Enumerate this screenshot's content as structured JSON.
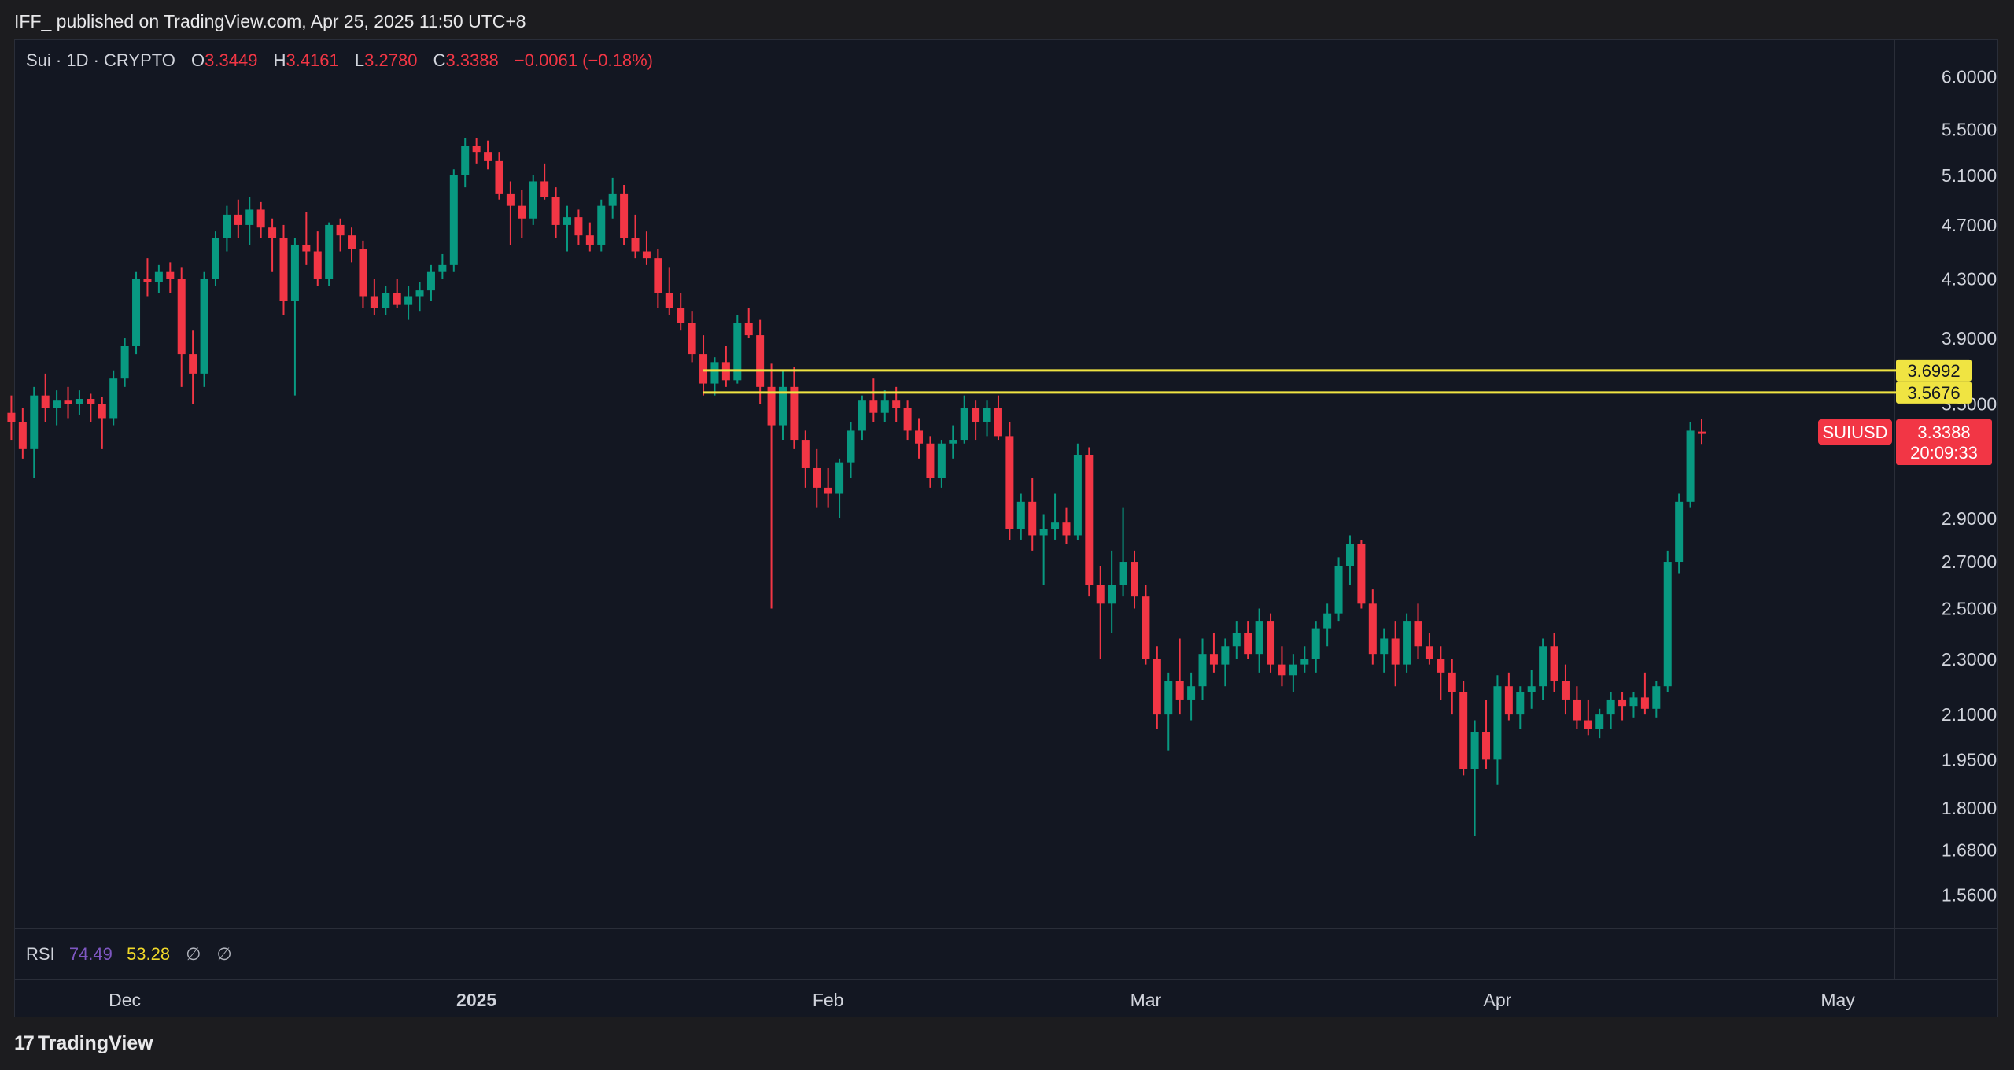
{
  "header": {
    "published": "IFF_ published on TradingView.com, Apr 25, 2025 11:50 UTC+8"
  },
  "legend": {
    "symbol": "Sui · 1D · CRYPTO",
    "o_label": "O",
    "o": "3.3449",
    "h_label": "H",
    "h": "3.4161",
    "l_label": "L",
    "l": "3.2780",
    "c_label": "C",
    "c": "3.3388",
    "change": "−0.0061 (−0.18%)"
  },
  "rsi": {
    "name": "RSI",
    "value1": "74.49",
    "value2": "53.28",
    "na1": "∅",
    "na2": "∅"
  },
  "footer": {
    "logo_mark": "17",
    "logo_text": "TradingView"
  },
  "colors": {
    "up": "#089981",
    "down": "#f23645",
    "level_line": "#f0e442",
    "background": "#131722",
    "text": "#d1d4dc"
  },
  "chart_data": {
    "type": "candlestick",
    "symbol": "SUIUSD",
    "interval": "1D",
    "y_scale": "log",
    "ylim": [
      1.5,
      6.2
    ],
    "price_ticks": [
      "6.0000",
      "5.5000",
      "5.1000",
      "4.7000",
      "4.3000",
      "3.9000",
      "3.5000",
      "2.9000",
      "2.7000",
      "2.5000",
      "2.3000",
      "2.1000",
      "1.9500",
      "1.8000",
      "1.6800",
      "1.5600"
    ],
    "x_ticks": [
      {
        "label": "Dec",
        "date": "2024-12-01"
      },
      {
        "label": "2025",
        "date": "2025-01-01",
        "bold": true
      },
      {
        "label": "Feb",
        "date": "2025-02-01"
      },
      {
        "label": "Mar",
        "date": "2025-03-01"
      },
      {
        "label": "Apr",
        "date": "2025-04-01"
      },
      {
        "label": "May",
        "date": "2025-05-01"
      }
    ],
    "horizontal_levels": [
      {
        "price": 3.6992,
        "label": "3.6992",
        "from_date": "2025-01-21"
      },
      {
        "price": 3.5676,
        "label": "3.5676",
        "from_date": "2025-01-21"
      }
    ],
    "last_price": {
      "symbol": "SUIUSD",
      "value": "3.3388",
      "countdown": "20:09:33"
    },
    "start_date": "2024-11-20",
    "candles": [
      [
        3.62,
        3.7,
        3.35,
        3.45
      ],
      [
        3.45,
        3.55,
        3.3,
        3.4
      ],
      [
        3.4,
        3.48,
        3.2,
        3.25
      ],
      [
        3.25,
        3.6,
        3.1,
        3.55
      ],
      [
        3.55,
        3.68,
        3.4,
        3.48
      ],
      [
        3.48,
        3.58,
        3.38,
        3.52
      ],
      [
        3.52,
        3.6,
        3.42,
        3.5
      ],
      [
        3.5,
        3.58,
        3.44,
        3.53
      ],
      [
        3.53,
        3.56,
        3.4,
        3.5
      ],
      [
        3.5,
        3.54,
        3.25,
        3.42
      ],
      [
        3.42,
        3.7,
        3.38,
        3.65
      ],
      [
        3.65,
        3.9,
        3.6,
        3.85
      ],
      [
        3.85,
        4.35,
        3.8,
        4.3
      ],
      [
        4.3,
        4.45,
        4.18,
        4.28
      ],
      [
        4.28,
        4.4,
        4.2,
        4.35
      ],
      [
        4.35,
        4.42,
        4.2,
        4.3
      ],
      [
        4.3,
        4.38,
        3.6,
        3.8
      ],
      [
        3.8,
        3.95,
        3.5,
        3.68
      ],
      [
        3.68,
        4.35,
        3.6,
        4.3
      ],
      [
        4.3,
        4.65,
        4.25,
        4.6
      ],
      [
        4.6,
        4.85,
        4.5,
        4.78
      ],
      [
        4.78,
        4.9,
        4.6,
        4.7
      ],
      [
        4.7,
        4.92,
        4.55,
        4.82
      ],
      [
        4.82,
        4.88,
        4.6,
        4.68
      ],
      [
        4.68,
        4.75,
        4.35,
        4.6
      ],
      [
        4.6,
        4.7,
        4.05,
        4.15
      ],
      [
        4.15,
        4.6,
        3.55,
        4.55
      ],
      [
        4.55,
        4.8,
        4.4,
        4.5
      ],
      [
        4.5,
        4.65,
        4.25,
        4.3
      ],
      [
        4.3,
        4.72,
        4.25,
        4.7
      ],
      [
        4.7,
        4.75,
        4.5,
        4.62
      ],
      [
        4.62,
        4.68,
        4.42,
        4.52
      ],
      [
        4.52,
        4.58,
        4.1,
        4.18
      ],
      [
        4.18,
        4.3,
        4.05,
        4.1
      ],
      [
        4.1,
        4.25,
        4.05,
        4.2
      ],
      [
        4.2,
        4.3,
        4.1,
        4.12
      ],
      [
        4.12,
        4.25,
        4.02,
        4.18
      ],
      [
        4.18,
        4.28,
        4.08,
        4.22
      ],
      [
        4.22,
        4.4,
        4.15,
        4.35
      ],
      [
        4.35,
        4.48,
        4.3,
        4.4
      ],
      [
        4.4,
        5.15,
        4.35,
        5.1
      ],
      [
        5.1,
        5.42,
        5.0,
        5.35
      ],
      [
        5.35,
        5.42,
        5.2,
        5.3
      ],
      [
        5.3,
        5.4,
        5.15,
        5.22
      ],
      [
        5.22,
        5.3,
        4.9,
        4.95
      ],
      [
        4.95,
        5.05,
        4.55,
        4.85
      ],
      [
        4.85,
        4.98,
        4.6,
        4.75
      ],
      [
        4.75,
        5.1,
        4.7,
        5.05
      ],
      [
        5.05,
        5.2,
        4.9,
        4.92
      ],
      [
        4.92,
        5.0,
        4.6,
        4.7
      ],
      [
        4.7,
        4.85,
        4.5,
        4.76
      ],
      [
        4.76,
        4.82,
        4.55,
        4.62
      ],
      [
        4.62,
        4.72,
        4.5,
        4.55
      ],
      [
        4.55,
        4.9,
        4.5,
        4.85
      ],
      [
        4.85,
        5.08,
        4.75,
        4.95
      ],
      [
        4.95,
        5.02,
        4.55,
        4.6
      ],
      [
        4.6,
        4.78,
        4.45,
        4.5
      ],
      [
        4.5,
        4.65,
        4.4,
        4.45
      ],
      [
        4.45,
        4.52,
        4.1,
        4.2
      ],
      [
        4.2,
        4.38,
        4.05,
        4.1
      ],
      [
        4.1,
        4.2,
        3.95,
        4.0
      ],
      [
        4.0,
        4.08,
        3.75,
        3.8
      ],
      [
        3.8,
        3.92,
        3.55,
        3.62
      ],
      [
        3.62,
        3.78,
        3.55,
        3.75
      ],
      [
        3.75,
        3.85,
        3.6,
        3.64
      ],
      [
        3.64,
        4.05,
        3.62,
        4.0
      ],
      [
        4.0,
        4.1,
        3.9,
        3.92
      ],
      [
        3.92,
        4.02,
        3.5,
        3.6
      ],
      [
        3.6,
        3.74,
        2.5,
        3.38
      ],
      [
        3.38,
        3.7,
        3.3,
        3.6
      ],
      [
        3.6,
        3.72,
        3.25,
        3.3
      ],
      [
        3.3,
        3.35,
        3.05,
        3.15
      ],
      [
        3.15,
        3.25,
        2.95,
        3.05
      ],
      [
        3.05,
        3.15,
        2.95,
        3.02
      ],
      [
        3.02,
        3.2,
        2.9,
        3.18
      ],
      [
        3.18,
        3.4,
        3.1,
        3.35
      ],
      [
        3.35,
        3.55,
        3.3,
        3.52
      ],
      [
        3.52,
        3.65,
        3.4,
        3.45
      ],
      [
        3.45,
        3.58,
        3.4,
        3.52
      ],
      [
        3.52,
        3.6,
        3.4,
        3.48
      ],
      [
        3.48,
        3.52,
        3.3,
        3.35
      ],
      [
        3.35,
        3.42,
        3.2,
        3.28
      ],
      [
        3.28,
        3.32,
        3.05,
        3.1
      ],
      [
        3.1,
        3.3,
        3.05,
        3.28
      ],
      [
        3.28,
        3.38,
        3.2,
        3.3
      ],
      [
        3.3,
        3.55,
        3.28,
        3.48
      ],
      [
        3.48,
        3.52,
        3.3,
        3.4
      ],
      [
        3.4,
        3.52,
        3.32,
        3.48
      ],
      [
        3.48,
        3.55,
        3.3,
        3.32
      ],
      [
        3.32,
        3.4,
        2.8,
        2.85
      ],
      [
        2.85,
        3.02,
        2.8,
        2.98
      ],
      [
        2.98,
        3.1,
        2.75,
        2.82
      ],
      [
        2.82,
        2.92,
        2.6,
        2.85
      ],
      [
        2.85,
        3.02,
        2.8,
        2.88
      ],
      [
        2.88,
        2.95,
        2.78,
        2.82
      ],
      [
        2.82,
        3.28,
        2.8,
        3.22
      ],
      [
        3.22,
        3.26,
        2.55,
        2.6
      ],
      [
        2.6,
        2.68,
        2.3,
        2.52
      ],
      [
        2.52,
        2.75,
        2.4,
        2.6
      ],
      [
        2.6,
        2.95,
        2.55,
        2.7
      ],
      [
        2.7,
        2.75,
        2.5,
        2.55
      ],
      [
        2.55,
        2.6,
        2.28,
        2.3
      ],
      [
        2.3,
        2.35,
        2.05,
        2.1
      ],
      [
        2.1,
        2.25,
        1.98,
        2.22
      ],
      [
        2.22,
        2.38,
        2.1,
        2.15
      ],
      [
        2.15,
        2.25,
        2.08,
        2.2
      ],
      [
        2.2,
        2.38,
        2.15,
        2.32
      ],
      [
        2.32,
        2.4,
        2.25,
        2.28
      ],
      [
        2.28,
        2.38,
        2.2,
        2.35
      ],
      [
        2.35,
        2.45,
        2.3,
        2.4
      ],
      [
        2.4,
        2.45,
        2.3,
        2.32
      ],
      [
        2.32,
        2.5,
        2.25,
        2.45
      ],
      [
        2.45,
        2.48,
        2.25,
        2.28
      ],
      [
        2.28,
        2.35,
        2.2,
        2.24
      ],
      [
        2.24,
        2.32,
        2.18,
        2.28
      ],
      [
        2.28,
        2.35,
        2.25,
        2.3
      ],
      [
        2.3,
        2.45,
        2.25,
        2.42
      ],
      [
        2.42,
        2.52,
        2.35,
        2.48
      ],
      [
        2.48,
        2.72,
        2.45,
        2.68
      ],
      [
        2.68,
        2.82,
        2.6,
        2.78
      ],
      [
        2.78,
        2.8,
        2.5,
        2.52
      ],
      [
        2.52,
        2.58,
        2.28,
        2.32
      ],
      [
        2.32,
        2.42,
        2.25,
        2.38
      ],
      [
        2.38,
        2.45,
        2.2,
        2.28
      ],
      [
        2.28,
        2.48,
        2.25,
        2.45
      ],
      [
        2.45,
        2.52,
        2.3,
        2.35
      ],
      [
        2.35,
        2.4,
        2.28,
        2.3
      ],
      [
        2.3,
        2.35,
        2.15,
        2.25
      ],
      [
        2.25,
        2.3,
        2.1,
        2.18
      ],
      [
        2.18,
        2.22,
        1.9,
        1.92
      ],
      [
        1.92,
        2.08,
        1.72,
        2.04
      ],
      [
        2.04,
        2.15,
        1.92,
        1.95
      ],
      [
        1.95,
        2.24,
        1.87,
        2.2
      ],
      [
        2.2,
        2.25,
        2.08,
        2.1
      ],
      [
        2.1,
        2.2,
        2.05,
        2.18
      ],
      [
        2.18,
        2.26,
        2.12,
        2.2
      ],
      [
        2.2,
        2.38,
        2.15,
        2.35
      ],
      [
        2.35,
        2.4,
        2.18,
        2.22
      ],
      [
        2.22,
        2.28,
        2.1,
        2.15
      ],
      [
        2.15,
        2.2,
        2.05,
        2.08
      ],
      [
        2.08,
        2.15,
        2.03,
        2.05
      ],
      [
        2.05,
        2.12,
        2.02,
        2.1
      ],
      [
        2.1,
        2.18,
        2.05,
        2.15
      ],
      [
        2.15,
        2.18,
        2.08,
        2.13
      ],
      [
        2.13,
        2.18,
        2.09,
        2.16
      ],
      [
        2.16,
        2.25,
        2.1,
        2.12
      ],
      [
        2.12,
        2.22,
        2.09,
        2.2
      ],
      [
        2.2,
        2.75,
        2.18,
        2.7
      ],
      [
        2.7,
        3.02,
        2.65,
        2.98
      ],
      [
        2.98,
        3.4,
        2.95,
        3.35
      ],
      [
        3.3449,
        3.4161,
        3.278,
        3.3388
      ]
    ]
  }
}
